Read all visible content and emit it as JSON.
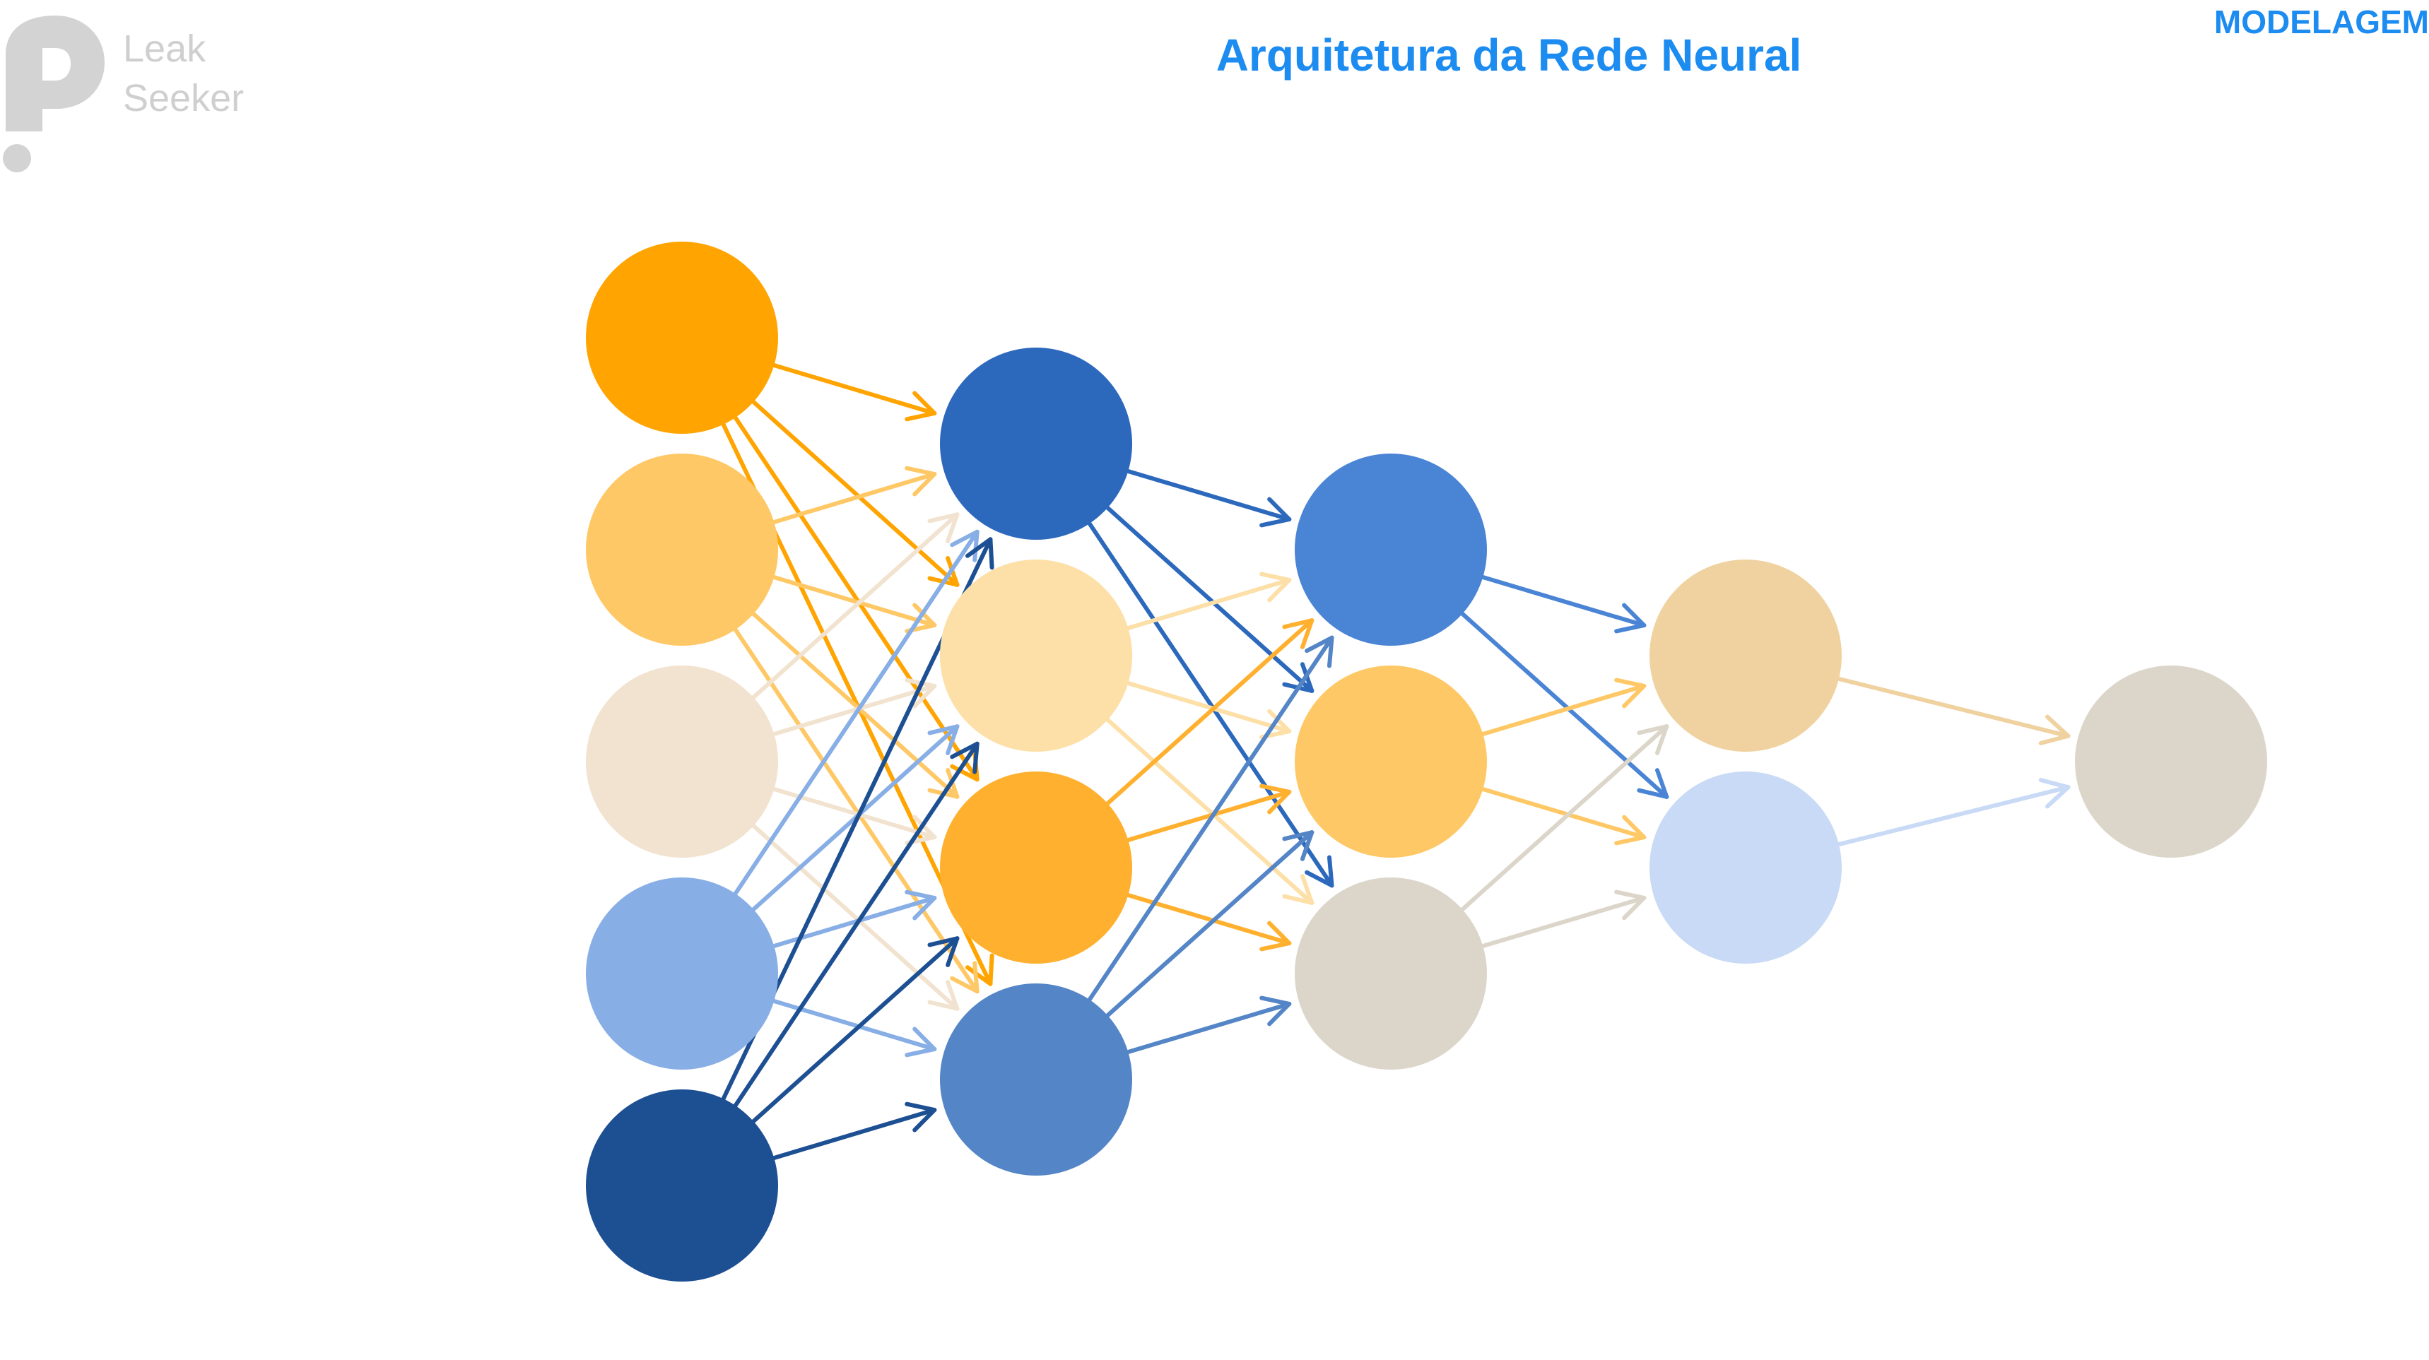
{
  "brand": {
    "logo_line1": "Leak",
    "logo_line2": "Seeker"
  },
  "header": {
    "title": "Arquitetura da Rede Neural",
    "section": "MODELAGEM"
  },
  "network": {
    "layers": [
      {
        "nodes": [
          "#FFA400",
          "#FFC866",
          "#F1E3CF",
          "#88AEE6",
          "#1D4F93"
        ]
      },
      {
        "nodes": [
          "#2C68BC",
          "#FDDFA8",
          "#FFB02E",
          "#5485C6"
        ]
      },
      {
        "nodes": [
          "#4A84D5",
          "#FFC866",
          "#DCD6CA"
        ]
      },
      {
        "nodes": [
          "#F0D2A0",
          "#C8DAF5"
        ]
      },
      {
        "nodes": [
          "#DCD6CA"
        ]
      }
    ]
  }
}
